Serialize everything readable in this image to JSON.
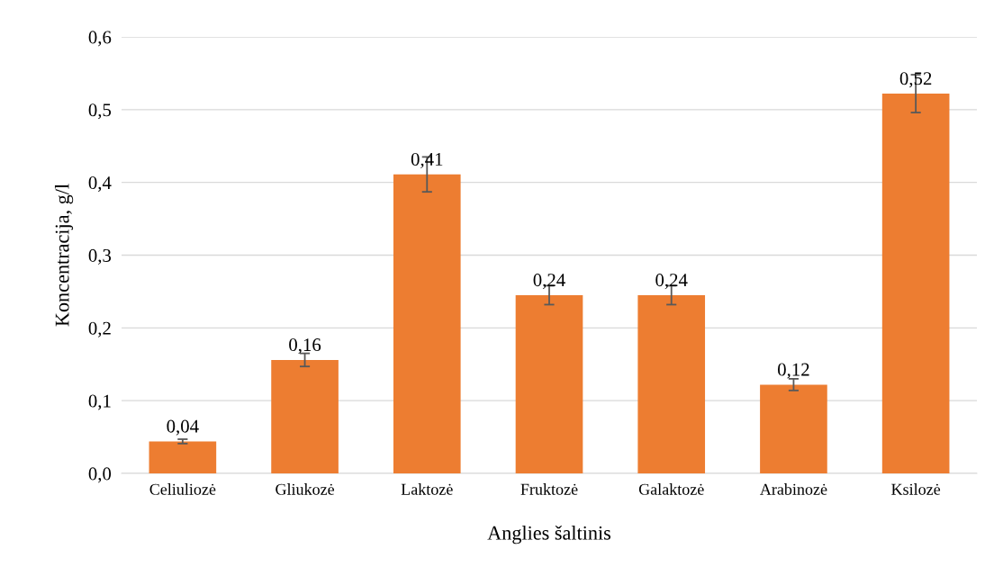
{
  "chart_data": {
    "type": "bar",
    "xlabel": "Anglies šaltinis",
    "ylabel": "Koncentracija, g/l",
    "categories": [
      "Celiuliozė",
      "Gliukozė",
      "Laktozė",
      "Fruktozė",
      "Galaktozė",
      "Arabinozė",
      "Ksilozė"
    ],
    "values": [
      0.044,
      0.156,
      0.411,
      0.245,
      0.245,
      0.122,
      0.522
    ],
    "errors": [
      0.003,
      0.009,
      0.024,
      0.013,
      0.013,
      0.008,
      0.026
    ],
    "value_labels": [
      "0,04",
      "0,16",
      "0,41",
      "0,24",
      "0,24",
      "0,12",
      "0,52"
    ],
    "color": "#ed7d31",
    "ylim": [
      0,
      0.6
    ],
    "yticks": [
      {
        "value": 0,
        "label": "0,0"
      },
      {
        "value": 0.1,
        "label": "0,1"
      },
      {
        "value": 0.2,
        "label": "0,2"
      },
      {
        "value": 0.3,
        "label": "0,3"
      },
      {
        "value": 0.4,
        "label": "0,4"
      },
      {
        "value": 0.5,
        "label": "0,5"
      },
      {
        "value": 0.6,
        "label": "0,6"
      }
    ],
    "grid": "y"
  }
}
